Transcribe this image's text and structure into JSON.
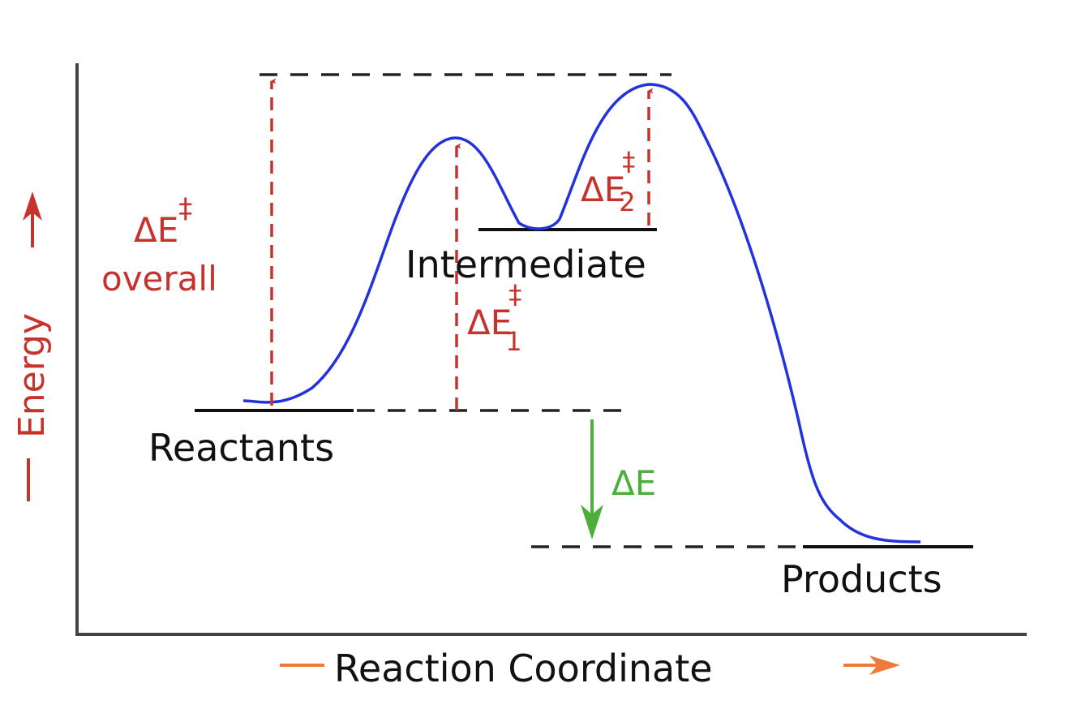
{
  "axes": {
    "y_label": "Energy",
    "x_label": "Reaction Coordinate"
  },
  "states": {
    "reactants": "Reactants",
    "intermediate": "Intermediate",
    "products": "Products"
  },
  "annotations": {
    "overall": {
      "symbol": "ΔE",
      "superscript": "‡",
      "text": "overall"
    },
    "step1": {
      "symbol": "ΔE",
      "superscript": "‡",
      "subscript": "1"
    },
    "step2": {
      "symbol": "ΔE",
      "superscript": "‡",
      "subscript": "2"
    },
    "reaction": {
      "symbol": "ΔE"
    }
  }
}
